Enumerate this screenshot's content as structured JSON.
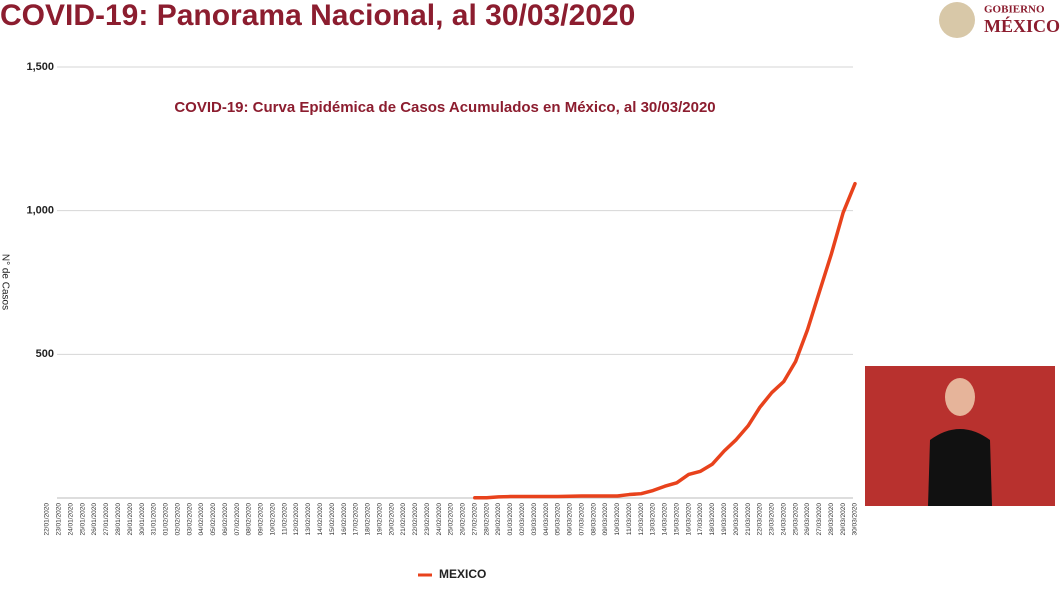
{
  "header": {
    "title": "COVID-19: Panorama Nacional, al 30/03/2020",
    "logo_line1": "GOBIERNO",
    "logo_line2": "MÉXICO"
  },
  "chart_data": {
    "type": "line",
    "title": "COVID-19: Curva Epidémica de Casos Acumulados en México, al 30/03/2020",
    "y_label": "N° de Casos",
    "categories": [
      "22/01/2020",
      "23/01/2020",
      "24/01/2020",
      "25/01/2020",
      "26/01/2020",
      "27/01/2020",
      "28/01/2020",
      "29/01/2020",
      "30/01/2020",
      "31/01/2020",
      "01/02/2020",
      "02/02/2020",
      "03/02/2020",
      "04/02/2020",
      "05/02/2020",
      "06/02/2020",
      "07/02/2020",
      "08/02/2020",
      "09/02/2020",
      "10/02/2020",
      "11/02/2020",
      "12/02/2020",
      "13/02/2020",
      "14/02/2020",
      "15/02/2020",
      "16/02/2020",
      "17/02/2020",
      "18/02/2020",
      "19/02/2020",
      "20/02/2020",
      "21/02/2020",
      "22/02/2020",
      "23/02/2020",
      "24/02/2020",
      "25/02/2020",
      "26/02/2020",
      "27/02/2020",
      "28/02/2020",
      "29/02/2020",
      "01/03/2020",
      "02/03/2020",
      "03/03/2020",
      "04/03/2020",
      "05/03/2020",
      "06/03/2020",
      "07/03/2020",
      "08/03/2020",
      "09/03/2020",
      "10/03/2020",
      "11/03/2020",
      "12/03/2020",
      "13/03/2020",
      "14/03/2020",
      "15/03/2020",
      "16/03/2020",
      "17/03/2020",
      "18/03/2020",
      "19/03/2020",
      "20/03/2020",
      "21/03/2020",
      "22/03/2020",
      "23/03/2020",
      "24/03/2020",
      "25/03/2020",
      "26/03/2020",
      "27/03/2020",
      "28/03/2020",
      "29/03/2020",
      "30/03/2020"
    ],
    "series": [
      {
        "name": "MEXICO",
        "color": "#e8421c",
        "values": [
          null,
          null,
          null,
          null,
          null,
          null,
          null,
          null,
          null,
          null,
          null,
          null,
          null,
          null,
          null,
          null,
          null,
          null,
          null,
          null,
          null,
          null,
          null,
          null,
          null,
          null,
          null,
          null,
          null,
          null,
          null,
          null,
          null,
          null,
          null,
          null,
          1,
          1,
          4,
          5,
          5,
          5,
          5,
          5,
          6,
          7,
          7,
          7,
          7,
          12,
          15,
          26,
          41,
          53,
          82,
          93,
          118,
          164,
          203,
          251,
          316,
          367,
          405,
          475,
          585,
          717,
          848,
          993,
          1094
        ]
      }
    ],
    "ylim": [
      0,
      1500
    ],
    "yticks": [
      500,
      {
        "value": 1000,
        "label": "1,000"
      },
      {
        "value": 1500,
        "label": "1,500"
      }
    ],
    "grid": true
  }
}
